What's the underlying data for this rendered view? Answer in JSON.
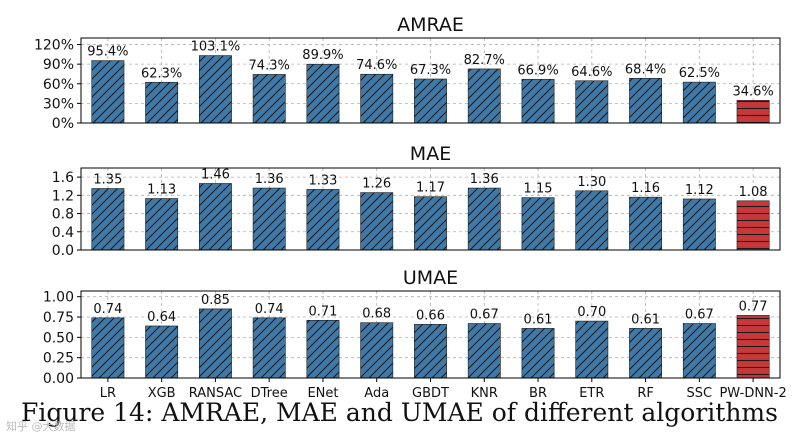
{
  "caption": "Figure 14: AMRAE, MAE and UMAE of different algorithms",
  "watermark": "知乎 @大数据",
  "colors": {
    "bar": "#3f79a8",
    "highlight": "#c8383b",
    "edge": "#1b1b1b",
    "grid": "#b0b0b0"
  },
  "chart_data": [
    {
      "type": "bar",
      "title": "AMRAE",
      "categories": [
        "LR",
        "XGB",
        "RANSAC",
        "DTree",
        "ENet",
        "Ada",
        "GBDT",
        "KNR",
        "BR",
        "ETR",
        "RF",
        "SSC",
        "PW-DNN-2"
      ],
      "values": [
        95.4,
        62.3,
        103.1,
        74.3,
        89.9,
        74.6,
        67.3,
        82.7,
        66.9,
        64.6,
        68.4,
        62.5,
        34.6
      ],
      "labels": [
        "95.4%",
        "62.3%",
        "103.1%",
        "74.3%",
        "89.9%",
        "74.6%",
        "67.3%",
        "82.7%",
        "66.9%",
        "64.6%",
        "68.4%",
        "62.5%",
        "34.6%"
      ],
      "ylim": [
        0,
        130
      ],
      "yticks": [
        0,
        30,
        60,
        90,
        120
      ],
      "ytick_labels": [
        "0%",
        "30%",
        "60%",
        "90%",
        "120%"
      ],
      "highlight_index": 12,
      "grid": true
    },
    {
      "type": "bar",
      "title": "MAE",
      "categories": [
        "LR",
        "XGB",
        "RANSAC",
        "DTree",
        "ENet",
        "Ada",
        "GBDT",
        "KNR",
        "BR",
        "ETR",
        "RF",
        "SSC",
        "PW-DNN-2"
      ],
      "values": [
        1.35,
        1.13,
        1.46,
        1.36,
        1.33,
        1.26,
        1.17,
        1.36,
        1.15,
        1.3,
        1.16,
        1.12,
        1.08
      ],
      "labels": [
        "1.35",
        "1.13",
        "1.46",
        "1.36",
        "1.33",
        "1.26",
        "1.17",
        "1.36",
        "1.15",
        "1.30",
        "1.16",
        "1.12",
        "1.08"
      ],
      "ylim": [
        0,
        1.8
      ],
      "yticks": [
        0.0,
        0.4,
        0.8,
        1.2,
        1.6
      ],
      "ytick_labels": [
        "0.0",
        "0.4",
        "0.8",
        "1.2",
        "1.6"
      ],
      "highlight_index": 12,
      "grid": true
    },
    {
      "type": "bar",
      "title": "UMAE",
      "categories": [
        "LR",
        "XGB",
        "RANSAC",
        "DTree",
        "ENet",
        "Ada",
        "GBDT",
        "KNR",
        "BR",
        "ETR",
        "RF",
        "SSC",
        "PW-DNN-2"
      ],
      "values": [
        0.74,
        0.64,
        0.85,
        0.74,
        0.71,
        0.68,
        0.66,
        0.67,
        0.61,
        0.7,
        0.61,
        0.67,
        0.77
      ],
      "labels": [
        "0.74",
        "0.64",
        "0.85",
        "0.74",
        "0.71",
        "0.68",
        "0.66",
        "0.67",
        "0.61",
        "0.70",
        "0.61",
        "0.67",
        "0.77"
      ],
      "ylim": [
        0,
        1.07
      ],
      "yticks": [
        0.0,
        0.25,
        0.5,
        0.75,
        1.0
      ],
      "ytick_labels": [
        "0.00",
        "0.25",
        "0.50",
        "0.75",
        "1.00"
      ],
      "highlight_index": 12,
      "grid": true,
      "show_xticks": true
    }
  ]
}
